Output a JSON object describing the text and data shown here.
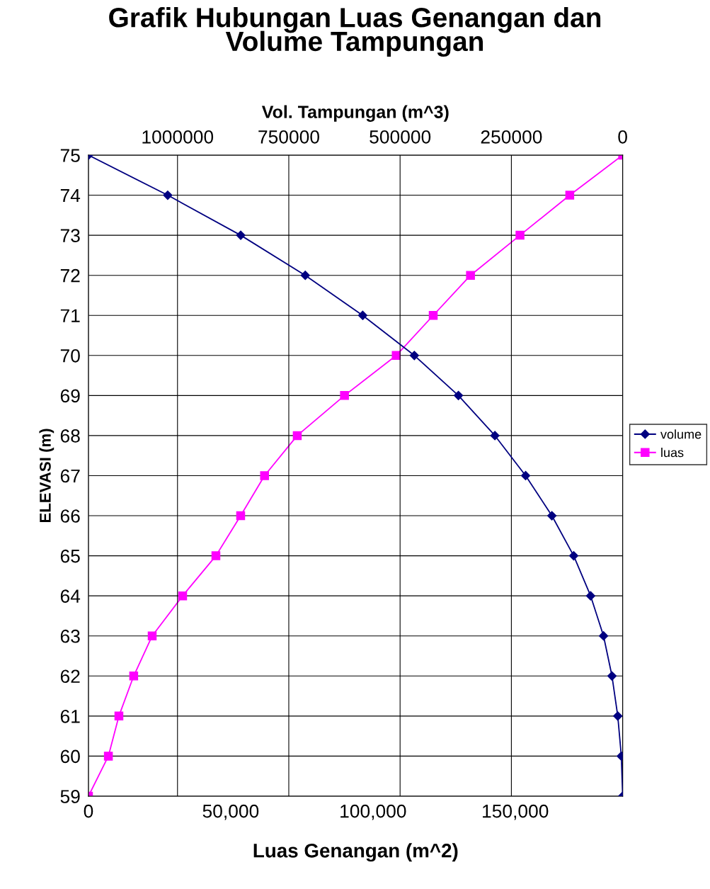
{
  "chart_data": {
    "type": "line",
    "orientation": "horizontal",
    "title": "Grafik Hubungan Luas Genangan dan\nVolume Tampungan",
    "xlabel": "Luas Genangan (m^2)",
    "x2label": "Vol. Tampungan (m^3)",
    "ylabel": "ELEVASI (m)",
    "x": [
      59,
      60,
      61,
      62,
      63,
      64,
      65,
      66,
      67,
      68,
      69,
      70,
      71,
      72,
      73,
      74,
      75
    ],
    "series": [
      {
        "name": "volume",
        "axis": "x2",
        "color": "#000080",
        "marker": "diamond",
        "values": [
          0,
          3000,
          11000,
          24000,
          43000,
          72000,
          110000,
          159000,
          218000,
          287000,
          369000,
          468000,
          584000,
          713000,
          858000,
          1022000,
          1200000
        ]
      },
      {
        "name": "luas",
        "color": "#ff00ff",
        "marker": "square",
        "values": [
          0,
          7000,
          10700,
          15900,
          22400,
          33100,
          44800,
          53500,
          61900,
          73400,
          90000,
          108200,
          121200,
          134300,
          151700,
          169200,
          187800
        ]
      }
    ],
    "xlim": [
      0,
      187800
    ],
    "xticks": [
      0,
      {
        "value": 50000,
        "label": "50,000"
      },
      {
        "value": 100000,
        "label": "100,000"
      },
      {
        "value": 150000,
        "label": "150,000"
      }
    ],
    "x2lim": [
      1200000,
      0
    ],
    "x2ticks": [
      1000000,
      750000,
      500000,
      250000,
      0
    ],
    "ylim": [
      59,
      75
    ],
    "yticks": [
      59,
      60,
      61,
      62,
      63,
      64,
      65,
      66,
      67,
      68,
      69,
      70,
      71,
      72,
      73,
      74,
      75
    ],
    "grid": true,
    "legend": "right"
  }
}
